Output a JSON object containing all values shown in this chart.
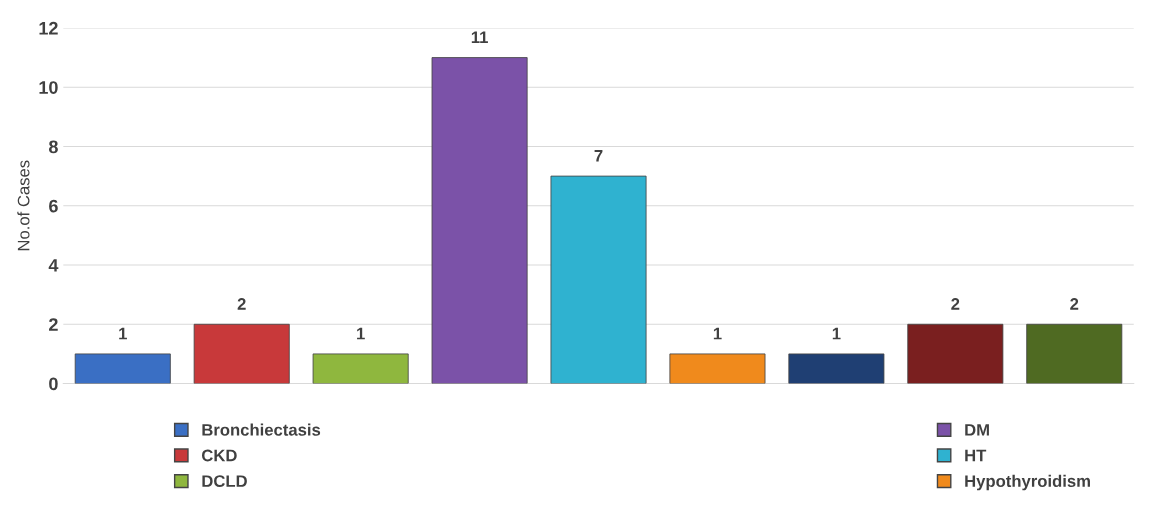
{
  "chart_data": {
    "type": "bar",
    "ylabel": "No.of Cases",
    "categories": [
      null
    ],
    "series": [
      {
        "name": "Bronchiectasis",
        "color": "#3a6fc4",
        "values": [
          1
        ]
      },
      {
        "name": "CKD",
        "color": "#c8393a",
        "values": [
          2
        ]
      },
      {
        "name": "DCLD",
        "color": "#8fb73e",
        "values": [
          1
        ]
      },
      {
        "name": "DM",
        "color": "#7b52a8",
        "values": [
          11
        ]
      },
      {
        "name": "HT",
        "color": "#2fb2d0",
        "values": [
          7
        ]
      },
      {
        "name": "Hypothyroidism",
        "color": "#f08a1c",
        "values": [
          1
        ]
      },
      {
        "color": "#1f3f73",
        "values": [
          1
        ]
      },
      {
        "color": "#7a1f1f",
        "values": [
          2
        ]
      },
      {
        "color": "#4f6a22",
        "values": [
          2
        ]
      }
    ],
    "ylim": [
      0,
      12
    ],
    "yticks": [
      0,
      2,
      4,
      6,
      8,
      10,
      12
    ],
    "grid": "y",
    "legend": "bottom",
    "data_labels": true,
    "tick_labels": "y"
  }
}
